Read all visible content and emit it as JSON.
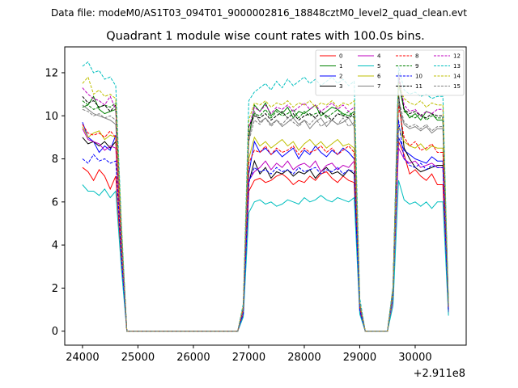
{
  "suptitle": "Data file: modeM0/AS1T03_094T01_9000002816_18848cztM0_level2_quad_clean.evt",
  "chart_data": {
    "type": "line",
    "title": "Quadrant 1 module wise count rates with 100.0s bins.",
    "xlabel": "",
    "ylabel": "",
    "x_offset_label": "+2.911e8",
    "xlim": [
      23680,
      30920
    ],
    "ylim": [
      -0.65,
      13.2
    ],
    "xticks": [
      24000,
      25000,
      26000,
      27000,
      28000,
      29000,
      30000
    ],
    "yticks": [
      0,
      2,
      4,
      6,
      8,
      10,
      12
    ],
    "legend_position": "top-right",
    "x": [
      24000,
      24100,
      24200,
      24300,
      24400,
      24500,
      24600,
      24700,
      24800,
      24900,
      25000,
      25100,
      25200,
      25300,
      25400,
      25500,
      25600,
      25700,
      25800,
      25900,
      26000,
      26100,
      26200,
      26300,
      26400,
      26500,
      26600,
      26700,
      26800,
      26900,
      27000,
      27100,
      27200,
      27300,
      27400,
      27500,
      27600,
      27700,
      27800,
      27900,
      28000,
      28100,
      28200,
      28300,
      28400,
      28500,
      28600,
      28700,
      28800,
      28900,
      29000,
      29100,
      29200,
      29300,
      29400,
      29500,
      29600,
      29700,
      29800,
      29900,
      30000,
      30100,
      30200,
      30300,
      30400,
      30500,
      30600
    ],
    "series": [
      {
        "name": "0",
        "color": "#ff0000",
        "dash": "solid",
        "base": [
          7.6,
          7.4,
          7.0,
          7.5,
          7.2,
          6.6,
          7.2
        ],
        "mid": [
          6.5,
          7.0,
          7.1,
          6.9,
          7.0,
          7.2,
          7.3,
          7.1,
          6.8,
          7.0,
          6.9,
          7.2,
          7.0,
          7.3,
          7.4,
          7.1,
          6.9,
          7.2,
          7.0,
          6.9,
          7.1
        ],
        "late": [
          8.8,
          8.2,
          7.3,
          7.5,
          7.2,
          7.0,
          7.3,
          6.8
        ]
      },
      {
        "name": "1",
        "color": "#008000",
        "dash": "solid",
        "base": [
          10.4,
          10.5,
          10.9,
          10.3,
          10.1,
          10.2,
          10.3
        ],
        "mid": [
          9.0,
          10.5,
          10.2,
          10.6,
          10.0,
          10.3,
          10.1,
          10.4,
          9.9,
          10.2,
          10.1,
          10.3,
          10.5,
          10.0,
          10.2,
          10.4,
          10.3,
          10.1,
          10.0,
          10.2,
          10.0
        ],
        "late": [
          11.5,
          10.3,
          9.9,
          10.1,
          9.8,
          10.2,
          10.1,
          9.8
        ]
      },
      {
        "name": "2",
        "color": "#0000ff",
        "dash": "solid",
        "base": [
          9.7,
          9.0,
          8.8,
          8.3,
          8.6,
          8.4,
          9.1
        ],
        "mid": [
          7.3,
          8.8,
          8.3,
          8.5,
          8.2,
          8.4,
          8.1,
          8.3,
          8.5,
          8.0,
          8.4,
          8.2,
          8.6,
          8.3,
          8.1,
          8.4,
          8.2,
          8.5,
          8.3,
          8.0,
          8.3
        ],
        "late": [
          9.0,
          8.4,
          8.2,
          8.0,
          7.9,
          7.8,
          8.1,
          7.9
        ]
      },
      {
        "name": "3",
        "color": "#000000",
        "dash": "solid",
        "base": [
          9.0,
          8.7,
          8.8,
          8.6,
          8.8,
          8.5,
          8.8
        ],
        "mid": [
          6.9,
          7.9,
          7.3,
          7.6,
          7.1,
          7.4,
          7.3,
          7.5,
          7.2,
          7.4,
          7.3,
          7.5,
          7.1,
          7.4,
          7.6,
          7.3,
          7.4,
          7.2,
          7.5,
          7.3,
          7.4
        ],
        "late": [
          11.0,
          8.5,
          8.0,
          7.6,
          7.4,
          7.5,
          7.6,
          7.7
        ]
      },
      {
        "name": "4",
        "color": "#bf00bf",
        "dash": "solid",
        "base": [
          9.4,
          8.9,
          8.8,
          8.7,
          8.4,
          8.6,
          8.5
        ],
        "mid": [
          7.0,
          7.4,
          7.6,
          7.9,
          7.5,
          7.8,
          7.6,
          7.9,
          7.5,
          7.7,
          7.8,
          7.6,
          7.9,
          7.4,
          7.7,
          7.8,
          7.5,
          7.7,
          7.6,
          7.9,
          7.5
        ],
        "late": [
          8.5,
          8.0,
          7.8,
          7.9,
          7.6,
          7.7,
          7.8,
          7.6
        ]
      },
      {
        "name": "5",
        "color": "#00bfbf",
        "dash": "solid",
        "base": [
          6.8,
          6.5,
          6.5,
          6.3,
          6.6,
          6.2,
          6.5
        ],
        "mid": [
          5.5,
          6.0,
          6.1,
          5.9,
          6.0,
          5.8,
          5.9,
          6.1,
          6.0,
          5.9,
          6.2,
          6.0,
          6.1,
          6.3,
          6.1,
          6.0,
          6.2,
          6.1,
          6.0,
          6.2,
          6.1
        ],
        "late": [
          7.0,
          6.1,
          5.9,
          6.0,
          5.8,
          6.0,
          5.7,
          6.0
        ]
      },
      {
        "name": "6",
        "color": "#bfbf00",
        "dash": "solid",
        "base": [
          9.5,
          9.0,
          9.2,
          9.3,
          8.9,
          9.1,
          9.0
        ],
        "mid": [
          8.0,
          9.0,
          8.6,
          8.8,
          8.5,
          8.7,
          8.9,
          8.6,
          8.8,
          8.4,
          8.7,
          8.9,
          8.6,
          8.8,
          8.5,
          8.7,
          8.9,
          8.6,
          8.7,
          8.5,
          8.8
        ],
        "late": [
          9.5,
          8.8,
          8.6,
          8.5,
          8.7,
          8.4,
          8.6,
          8.5
        ]
      },
      {
        "name": "7",
        "color": "#808080",
        "dash": "solid",
        "base": [
          10.5,
          10.3,
          10.1,
          10.0,
          9.9,
          9.8,
          9.6
        ],
        "mid": [
          8.9,
          10.2,
          9.7,
          9.9,
          9.6,
          9.8,
          9.5,
          9.7,
          9.9,
          9.6,
          9.8,
          9.4,
          9.7,
          9.9,
          9.5,
          9.8,
          9.6,
          9.7,
          9.9,
          9.5,
          9.7
        ],
        "late": [
          10.5,
          9.6,
          9.4,
          9.5,
          9.3,
          9.5,
          9.2,
          9.4
        ]
      },
      {
        "name": "8",
        "color": "#ff0000",
        "dash": "dashed",
        "base": [
          9.6,
          9.2,
          9.1,
          9.2,
          9.0,
          9.3,
          9.0
        ],
        "mid": [
          7.8,
          8.4,
          8.3,
          8.6,
          8.2,
          8.5,
          8.3,
          8.4,
          8.6,
          8.2,
          8.5,
          8.3,
          8.4,
          8.6,
          8.3,
          8.5,
          8.2,
          8.4,
          8.6,
          8.3,
          8.5
        ],
        "late": [
          10.5,
          9.0,
          8.6,
          8.8,
          8.4,
          8.5,
          8.7,
          8.3
        ]
      },
      {
        "name": "9",
        "color": "#008000",
        "dash": "dashed",
        "base": [
          10.7,
          10.5,
          10.3,
          10.4,
          10.5,
          10.4,
          10.6
        ],
        "mid": [
          9.5,
          10.1,
          10.0,
          10.3,
          9.9,
          10.2,
          10.0,
          10.1,
          10.3,
          9.9,
          10.2,
          10.0,
          10.1,
          10.2,
          9.9,
          10.1,
          10.3,
          10.0,
          10.2,
          9.9,
          10.1
        ],
        "late": [
          11.7,
          10.2,
          10.0,
          9.9,
          10.1,
          9.8,
          10.0,
          9.9
        ]
      },
      {
        "name": "10",
        "color": "#0000ff",
        "dash": "dashed",
        "base": [
          8.0,
          7.8,
          8.2,
          7.9,
          8.0,
          7.8,
          7.9
        ],
        "mid": [
          6.9,
          7.6,
          7.4,
          7.5,
          7.3,
          7.6,
          7.4,
          7.5,
          7.3,
          7.6,
          7.4,
          7.5,
          7.6,
          7.3,
          7.5,
          7.4,
          7.6,
          7.3,
          7.5,
          7.4,
          7.6
        ],
        "late": [
          9.8,
          8.0,
          7.7,
          7.6,
          7.8,
          7.5,
          7.7,
          7.6
        ]
      },
      {
        "name": "11",
        "color": "#000000",
        "dash": "dashed",
        "base": [
          10.9,
          10.6,
          10.7,
          10.4,
          10.5,
          10.2,
          10.5
        ],
        "mid": [
          9.5,
          10.0,
          9.9,
          10.1,
          9.8,
          10.0,
          10.2,
          9.9,
          10.1,
          9.8,
          10.0,
          10.1,
          9.9,
          10.2,
          10.0,
          9.8,
          10.1,
          10.0,
          9.9,
          10.1,
          10.0
        ],
        "late": [
          12.0,
          10.3,
          10.1,
          10.2,
          10.0,
          9.9,
          10.1,
          10.0
        ]
      },
      {
        "name": "12",
        "color": "#bf00bf",
        "dash": "dashed",
        "base": [
          11.3,
          11.0,
          10.8,
          10.7,
          10.5,
          10.9,
          10.3
        ],
        "mid": [
          9.4,
          10.4,
          10.2,
          10.5,
          10.1,
          10.4,
          10.3,
          10.5,
          10.2,
          10.4,
          10.6,
          10.3,
          10.5,
          10.2,
          10.4,
          10.6,
          10.3,
          10.5,
          10.2,
          10.4,
          10.6
        ],
        "late": [
          11.8,
          10.5,
          10.2,
          10.3,
          10.0,
          10.2,
          10.1,
          10.3
        ]
      },
      {
        "name": "13",
        "color": "#00bfbf",
        "dash": "dashed",
        "base": [
          12.3,
          12.5,
          12.0,
          12.1,
          11.7,
          11.8,
          11.4
        ],
        "mid": [
          10.7,
          11.1,
          11.3,
          11.5,
          11.2,
          11.6,
          11.3,
          11.7,
          11.4,
          11.6,
          11.8,
          11.5,
          11.7,
          11.4,
          11.6,
          11.8,
          11.5,
          11.7,
          11.4,
          11.6,
          11.8
        ],
        "late": [
          12.3,
          11.2,
          11.0,
          11.1,
          10.9,
          11.0,
          10.8,
          10.9
        ]
      },
      {
        "name": "14",
        "color": "#bfbf00",
        "dash": "dashed",
        "base": [
          11.5,
          11.8,
          11.0,
          11.2,
          10.9,
          11.0,
          10.8
        ],
        "mid": [
          9.8,
          10.6,
          10.5,
          10.7,
          10.4,
          10.6,
          10.5,
          10.7,
          10.4,
          10.6,
          10.5,
          10.7,
          10.4,
          10.6,
          10.5,
          10.7,
          10.4,
          10.6,
          10.5,
          10.7,
          10.4
        ],
        "late": [
          11.5,
          10.8,
          10.6,
          10.5,
          10.7,
          10.4,
          10.6,
          10.5
        ]
      },
      {
        "name": "15",
        "color": "#808080",
        "dash": "dashed",
        "base": [
          10.3,
          10.2,
          10.0,
          10.1,
          9.9,
          10.0,
          9.8
        ],
        "mid": [
          8.8,
          9.8,
          9.6,
          9.9,
          9.5,
          9.8,
          9.6,
          9.9,
          9.7,
          9.5,
          9.8,
          9.6,
          9.9,
          9.5,
          9.7,
          9.8,
          9.6,
          9.9,
          9.5,
          9.7,
          9.8
        ],
        "late": [
          10.8,
          9.7,
          9.5,
          9.6,
          9.4,
          9.6,
          9.3,
          9.5
        ]
      }
    ]
  }
}
